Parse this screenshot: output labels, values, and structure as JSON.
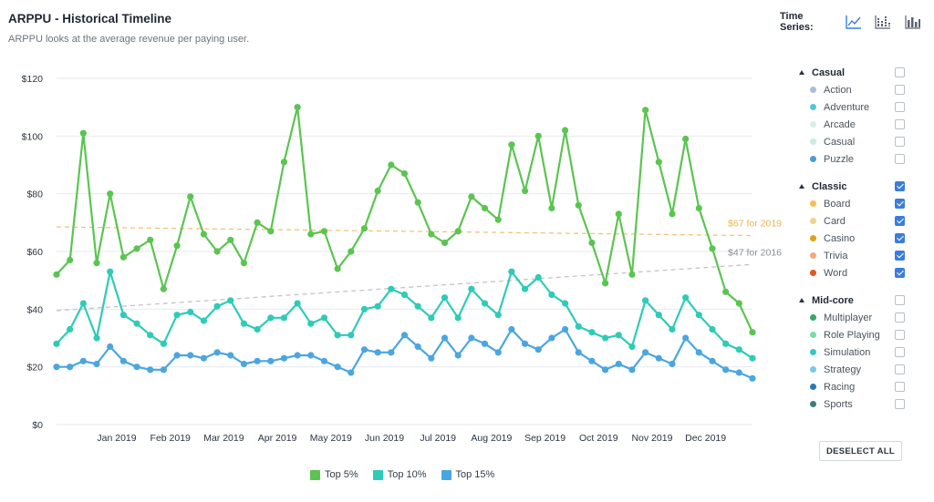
{
  "header": {
    "title": "ARPPU - Historical Timeline",
    "subtitle": "ARPPU looks at the average revenue per paying user."
  },
  "time_series": {
    "label": "Time Series:",
    "buttons": [
      {
        "name": "line-chart-icon",
        "active": true
      },
      {
        "name": "stacked-bar-chart-icon",
        "active": false
      },
      {
        "name": "bar-chart-icon",
        "active": false
      }
    ]
  },
  "chart_data": {
    "type": "line",
    "ylim": [
      0,
      120
    ],
    "yticks": [
      0,
      20,
      40,
      60,
      80,
      100,
      120
    ],
    "ytick_labels": [
      "$0",
      "$20",
      "$40",
      "$60",
      "$80",
      "$100",
      "$120"
    ],
    "xtick_labels": [
      "Jan 2019",
      "Feb 2019",
      "Mar 2019",
      "Apr 2019",
      "May 2019",
      "Jun 2019",
      "Jul 2019",
      "Aug 2019",
      "Sep 2019",
      "Oct 2019",
      "Nov 2019",
      "Dec 2019"
    ],
    "xtick_positions": [
      4.5,
      8.5,
      12.5,
      16.5,
      20.5,
      24.5,
      28.5,
      32.5,
      36.5,
      40.5,
      44.5,
      48.5
    ],
    "x_count": 53,
    "grid": true,
    "legend_position": "bottom",
    "series": [
      {
        "name": "Top 5%",
        "color": "#5ac550",
        "values": [
          52,
          57,
          101,
          56,
          80,
          58,
          61,
          64,
          47,
          62,
          79,
          66,
          60,
          64,
          56,
          70,
          67,
          91,
          110,
          66,
          67,
          54,
          60,
          68,
          81,
          90,
          87,
          77,
          66,
          63,
          67,
          79,
          75,
          71,
          97,
          81,
          100,
          75,
          102,
          76,
          63,
          49,
          73,
          52,
          109,
          91,
          73,
          99,
          75,
          61,
          46,
          42,
          32
        ]
      },
      {
        "name": "Top 10%",
        "color": "#2ecbb7",
        "values": [
          28,
          33,
          42,
          30,
          53,
          38,
          35,
          31,
          28,
          38,
          39,
          36,
          41,
          43,
          35,
          33,
          37,
          37,
          42,
          35,
          37,
          31,
          31,
          40,
          41,
          47,
          45,
          41,
          37,
          44,
          37,
          47,
          42,
          38,
          53,
          47,
          51,
          45,
          42,
          34,
          32,
          30,
          31,
          27,
          43,
          38,
          33,
          44,
          38,
          33,
          28,
          26,
          23
        ]
      },
      {
        "name": "Top 15%",
        "color": "#4aa6e0",
        "values": [
          20,
          20,
          22,
          21,
          27,
          22,
          20,
          19,
          19,
          24,
          24,
          23,
          25,
          24,
          21,
          22,
          22,
          23,
          24,
          24,
          22,
          20,
          18,
          26,
          25,
          25,
          31,
          27,
          23,
          30,
          24,
          30,
          28,
          25,
          33,
          28,
          26,
          30,
          33,
          25,
          22,
          19,
          21,
          19,
          25,
          23,
          21,
          30,
          25,
          22,
          19,
          18,
          16
        ]
      }
    ],
    "trendlines": [
      {
        "label": "$67 for 2019",
        "color": "#f5c27a",
        "label_color": "#f2b34c",
        "start": 68.5,
        "end": 65.5
      },
      {
        "label": "$47 for 2016",
        "color": "#c4c3cc",
        "label_color": "#8a8f99",
        "start": 39.5,
        "end": 55.5
      }
    ]
  },
  "panel": {
    "groups": [
      {
        "label": "Casual",
        "checked": false,
        "items": [
          {
            "label": "Action",
            "color": "#a9bed4",
            "checked": false
          },
          {
            "label": "Adventure",
            "color": "#55c4dc",
            "checked": false
          },
          {
            "label": "Arcade",
            "color": "#d6efe6",
            "checked": false
          },
          {
            "label": "Casual",
            "color": "#c6ece3",
            "checked": false
          },
          {
            "label": "Puzzle",
            "color": "#4a9ccf",
            "checked": false
          }
        ]
      },
      {
        "label": "Classic",
        "checked": true,
        "items": [
          {
            "label": "Board",
            "color": "#f4c04e",
            "checked": true
          },
          {
            "label": "Card",
            "color": "#f1d18a",
            "checked": true
          },
          {
            "label": "Casino",
            "color": "#e0a019",
            "checked": true
          },
          {
            "label": "Trivia",
            "color": "#f5a77c",
            "checked": true
          },
          {
            "label": "Word",
            "color": "#e2571f",
            "checked": true
          }
        ]
      },
      {
        "label": "Mid-core",
        "checked": false,
        "items": [
          {
            "label": "Multiplayer",
            "color": "#33a867",
            "checked": false
          },
          {
            "label": "Role Playing",
            "color": "#7cdca4",
            "checked": false
          },
          {
            "label": "Simulation",
            "color": "#34c9c1",
            "checked": false
          },
          {
            "label": "Strategy",
            "color": "#7ac6ec",
            "checked": false
          },
          {
            "label": "Racing",
            "color": "#2778ba",
            "checked": false
          },
          {
            "label": "Sports",
            "color": "#3b7f7e",
            "checked": false
          }
        ]
      }
    ],
    "deselect_label": "DESELECT ALL"
  }
}
